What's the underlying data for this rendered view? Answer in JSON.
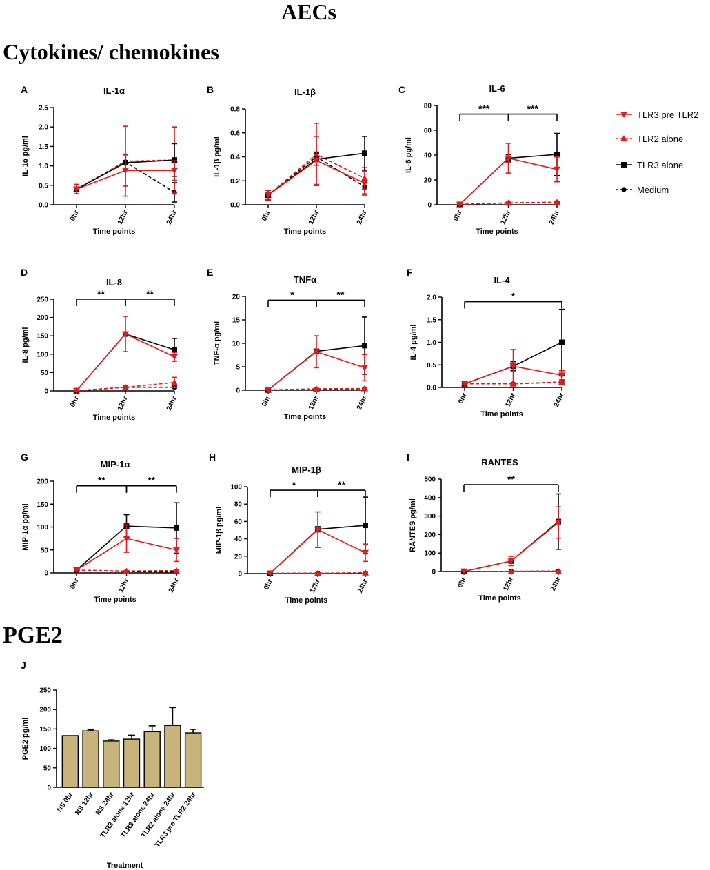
{
  "figure_title": "AECs",
  "section_cytokines": "Cytokines/ chemokines",
  "section_pge2": "PGE2",
  "legend": [
    {
      "key": "tlr3preTlr2",
      "label": "TLR3 pre TLR2",
      "color": "#e11c1c",
      "dash": false,
      "marker": "triangle-down"
    },
    {
      "key": "tlr2alone",
      "label": "TLR2 alone",
      "color": "#e11c1c",
      "dash": true,
      "marker": "triangle-up"
    },
    {
      "key": "tlr3alone",
      "label": "TLR3 alone",
      "color": "#000000",
      "dash": false,
      "marker": "square"
    },
    {
      "key": "medium",
      "label": "Medium",
      "color": "#000000",
      "dash": true,
      "marker": "circle"
    }
  ],
  "chart_data": [
    {
      "id": "A",
      "letter": "A",
      "type": "line",
      "title": "IL-1α",
      "ylabel": "IL-1α pg/ml",
      "xlabel": "Time points",
      "categories": [
        "0hr",
        "12hr",
        "24hr"
      ],
      "ylim": [
        0,
        2.5
      ],
      "yticks": [
        0.0,
        0.5,
        1.0,
        1.5,
        2.0,
        2.5
      ],
      "yticklabels": [
        "0.0",
        "0.5",
        "1.0",
        "1.5",
        "2.0",
        "2.5"
      ],
      "series": [
        {
          "name": "TLR3 pre TLR2",
          "values": [
            0.4,
            0.88,
            0.88
          ],
          "err": [
            0.12,
            0.4,
            0.25
          ]
        },
        {
          "name": "TLR2 alone",
          "values": [
            0.4,
            1.12,
            1.15
          ],
          "err": [
            0.12,
            0.9,
            0.85
          ]
        },
        {
          "name": "TLR3 alone",
          "values": [
            0.4,
            1.08,
            1.15
          ],
          "err": [
            0.12,
            0.2,
            0.42
          ]
        },
        {
          "name": "Medium",
          "values": [
            0.4,
            1.1,
            0.32
          ],
          "err": [
            0.12,
            0.2,
            0.25
          ]
        }
      ],
      "significance": []
    },
    {
      "id": "B",
      "letter": "B",
      "type": "line",
      "title": "IL-1β",
      "ylabel": "IL-1β pg/ml",
      "xlabel": "Time points",
      "categories": [
        "0hr",
        "12hr",
        "24hr"
      ],
      "ylim": [
        0,
        0.8
      ],
      "yticks": [
        0.0,
        0.2,
        0.4,
        0.6,
        0.8
      ],
      "yticklabels": [
        "0.0",
        "0.2",
        "0.4",
        "0.6",
        "0.8"
      ],
      "series": [
        {
          "name": "TLR3 pre TLR2",
          "values": [
            0.08,
            0.37,
            0.18
          ],
          "err": [
            0.04,
            0.2,
            0.1
          ]
        },
        {
          "name": "TLR2 alone",
          "values": [
            0.08,
            0.42,
            0.22
          ],
          "err": [
            0.04,
            0.26,
            0.09
          ]
        },
        {
          "name": "TLR3 alone",
          "values": [
            0.08,
            0.38,
            0.43
          ],
          "err": [
            0.04,
            0.05,
            0.14
          ]
        },
        {
          "name": "Medium",
          "values": [
            0.08,
            0.4,
            0.15
          ],
          "err": [
            0.04,
            0.04,
            0.06
          ]
        }
      ],
      "significance": []
    },
    {
      "id": "C",
      "letter": "C",
      "type": "line",
      "title": "IL-6",
      "ylabel": "IL-6 pg/ml",
      "xlabel": "Time points",
      "categories": [
        "0hr",
        "12hr",
        "24hr"
      ],
      "ylim": [
        0,
        80
      ],
      "yticks": [
        0,
        20,
        40,
        60,
        80
      ],
      "yticklabels": [
        "0",
        "20",
        "40",
        "60",
        "80"
      ],
      "series": [
        {
          "name": "TLR3 pre TLR2",
          "values": [
            0.3,
            37.5,
            28.5
          ],
          "err": [
            0.3,
            12,
            10
          ]
        },
        {
          "name": "TLR2 alone",
          "values": [
            0.3,
            1.5,
            2.0
          ],
          "err": [
            0.3,
            0.5,
            0.5
          ]
        },
        {
          "name": "TLR3 alone",
          "values": [
            0.3,
            37.5,
            40.5
          ],
          "err": [
            0.3,
            3,
            17
          ]
        },
        {
          "name": "Medium",
          "values": [
            0.3,
            1.5,
            2.0
          ],
          "err": [
            0.3,
            0.5,
            0.5
          ]
        }
      ],
      "significance": [
        {
          "from": 0,
          "to": 1,
          "label": "***",
          "y": 73
        },
        {
          "from": 1,
          "to": 2,
          "label": "***",
          "y": 73
        }
      ]
    },
    {
      "id": "D",
      "letter": "D",
      "type": "line",
      "title": "IL-8",
      "ylabel": "IL-8 pg/ml",
      "xlabel": "Time points",
      "categories": [
        "0hr",
        "12hr",
        "24hr"
      ],
      "ylim": [
        0,
        250
      ],
      "yticks": [
        0,
        50,
        100,
        150,
        200,
        250
      ],
      "yticklabels": [
        "0",
        "50",
        "100",
        "150",
        "200",
        "250"
      ],
      "series": [
        {
          "name": "TLR3 pre TLR2",
          "values": [
            0.5,
            155,
            93
          ],
          "err": [
            0.5,
            48,
            12
          ]
        },
        {
          "name": "TLR2 alone",
          "values": [
            0.5,
            10,
            23
          ],
          "err": [
            0.5,
            3,
            14
          ]
        },
        {
          "name": "TLR3 alone",
          "values": [
            0.5,
            155,
            112
          ],
          "err": [
            0.5,
            5,
            31
          ]
        },
        {
          "name": "Medium",
          "values": [
            0.5,
            10,
            10
          ],
          "err": [
            0.5,
            2,
            3
          ]
        }
      ],
      "significance": [
        {
          "from": 0,
          "to": 1,
          "label": "**",
          "y": 250
        },
        {
          "from": 1,
          "to": 2,
          "label": "**",
          "y": 250
        }
      ]
    },
    {
      "id": "E",
      "letter": "E",
      "type": "line",
      "title": "TNFα",
      "ylabel": "TNF-α pg/ml",
      "xlabel": "Time points",
      "categories": [
        "0hr",
        "12hr",
        "24hr"
      ],
      "ylim": [
        0,
        20
      ],
      "yticks": [
        0,
        5,
        10,
        15,
        20
      ],
      "yticklabels": [
        "0",
        "5",
        "10",
        "15",
        "20"
      ],
      "series": [
        {
          "name": "TLR3 pre TLR2",
          "values": [
            0.05,
            8.2,
            4.8
          ],
          "err": [
            0.05,
            3.4,
            2.8
          ]
        },
        {
          "name": "TLR2 alone",
          "values": [
            0.05,
            0.3,
            0.35
          ],
          "err": [
            0.05,
            0.1,
            0.1
          ]
        },
        {
          "name": "TLR3 alone",
          "values": [
            0.05,
            8.3,
            9.5
          ],
          "err": [
            0.05,
            0.3,
            6.1
          ]
        },
        {
          "name": "Medium",
          "values": [
            0.05,
            0.25,
            0.3
          ],
          "err": [
            0.05,
            0.1,
            0.1
          ]
        }
      ],
      "significance": [
        {
          "from": 0,
          "to": 1,
          "label": "*",
          "y": 19.2
        },
        {
          "from": 1,
          "to": 2,
          "label": "**",
          "y": 19.2
        }
      ]
    },
    {
      "id": "F",
      "letter": "F",
      "type": "line",
      "title": "IL-4",
      "ylabel": "IL-4 pg/ml",
      "xlabel": "Time points",
      "categories": [
        "0hr",
        "12hr",
        "24hr"
      ],
      "ylim": [
        0,
        2.0
      ],
      "yticks": [
        0.0,
        0.5,
        1.0,
        1.5,
        2.0
      ],
      "yticklabels": [
        "0.0",
        "0.5",
        "1.0",
        "1.5",
        "2.0"
      ],
      "series": [
        {
          "name": "TLR3 pre TLR2",
          "values": [
            0.08,
            0.47,
            0.27
          ],
          "err": [
            0.02,
            0.37,
            0.1
          ]
        },
        {
          "name": "TLR2 alone",
          "values": [
            0.08,
            0.08,
            0.12
          ],
          "err": [
            0.02,
            0.02,
            0.05
          ]
        },
        {
          "name": "TLR3 alone",
          "values": [
            0.08,
            0.47,
            1.0
          ],
          "err": [
            0.02,
            0.1,
            0.73
          ]
        },
        {
          "name": "Medium",
          "values": [
            0.08,
            0.08,
            0.12
          ],
          "err": [
            0.02,
            0.02,
            0.05
          ]
        }
      ],
      "significance": [
        {
          "from": 0,
          "to": 2,
          "label": "*",
          "y": 1.9
        }
      ]
    },
    {
      "id": "G",
      "letter": "G",
      "type": "line",
      "title": "MIP-1α",
      "ylabel": "MIP-1α pg/ml",
      "xlabel": "Time points",
      "categories": [
        "0hr",
        "12hr",
        "24hr"
      ],
      "ylim": [
        0,
        200
      ],
      "yticks": [
        0,
        50,
        100,
        150,
        200
      ],
      "yticklabels": [
        "0",
        "50",
        "100",
        "150",
        "200"
      ],
      "series": [
        {
          "name": "TLR3 pre TLR2",
          "values": [
            6,
            75,
            50
          ],
          "err": [
            1,
            30,
            25
          ]
        },
        {
          "name": "TLR2 alone",
          "values": [
            6,
            4,
            5
          ],
          "err": [
            1,
            1,
            2
          ]
        },
        {
          "name": "TLR3 alone",
          "values": [
            6,
            102,
            98
          ],
          "err": [
            1,
            25,
            55
          ]
        },
        {
          "name": "Medium",
          "values": [
            6,
            3,
            2
          ],
          "err": [
            1,
            1,
            1
          ]
        }
      ],
      "significance": [
        {
          "from": 0,
          "to": 1,
          "label": "**",
          "y": 190
        },
        {
          "from": 1,
          "to": 2,
          "label": "**",
          "y": 190
        }
      ]
    },
    {
      "id": "H",
      "letter": "H",
      "type": "line",
      "title": "MIP-1β",
      "ylabel": "MIP-1β pg/ml",
      "xlabel": "Time points",
      "categories": [
        "0hr",
        "12hr",
        "24hr"
      ],
      "ylim": [
        0,
        100
      ],
      "yticks": [
        0,
        20,
        40,
        60,
        80,
        100
      ],
      "yticklabels": [
        "0",
        "20",
        "40",
        "60",
        "80",
        "100"
      ],
      "series": [
        {
          "name": "TLR3 pre TLR2",
          "values": [
            0.3,
            50.5,
            24
          ],
          "err": [
            0.3,
            20.5,
            10
          ]
        },
        {
          "name": "TLR2 alone",
          "values": [
            0.3,
            0.5,
            1
          ],
          "err": [
            0.3,
            0.3,
            0.5
          ]
        },
        {
          "name": "TLR3 alone",
          "values": [
            0.3,
            51,
            55.5
          ],
          "err": [
            0.3,
            3,
            32.5
          ]
        },
        {
          "name": "Medium",
          "values": [
            0.3,
            0.5,
            0.5
          ],
          "err": [
            0.3,
            0.3,
            0.3
          ]
        }
      ],
      "significance": [
        {
          "from": 0,
          "to": 1,
          "label": "*",
          "y": 96
        },
        {
          "from": 1,
          "to": 2,
          "label": "**",
          "y": 96
        }
      ]
    },
    {
      "id": "I",
      "letter": "I",
      "type": "line",
      "title": "RANTES",
      "ylabel": "RANTES pg/ml",
      "xlabel": "Time points",
      "categories": [
        "0hr",
        "12hr",
        "24hr"
      ],
      "ylim": [
        0,
        500
      ],
      "yticks": [
        0,
        100,
        200,
        300,
        400,
        500
      ],
      "yticklabels": [
        "0",
        "100",
        "200",
        "300",
        "400",
        "500"
      ],
      "series": [
        {
          "name": "TLR3 pre TLR2",
          "values": [
            0.5,
            57,
            265
          ],
          "err": [
            0.5,
            25,
            85
          ]
        },
        {
          "name": "TLR2 alone",
          "values": [
            0.5,
            1,
            2
          ],
          "err": [
            0.5,
            0.5,
            1
          ]
        },
        {
          "name": "TLR3 alone",
          "values": [
            0.5,
            57,
            270
          ],
          "err": [
            0.5,
            10,
            150
          ]
        },
        {
          "name": "Medium",
          "values": [
            0.5,
            1,
            2
          ],
          "err": [
            0.5,
            0.5,
            1
          ]
        }
      ],
      "significance": [
        {
          "from": 0,
          "to": 2,
          "label": "**",
          "y": 470
        }
      ]
    },
    {
      "id": "J",
      "letter": "J",
      "type": "bar",
      "title": "",
      "ylabel": "PGE2 pg/ml",
      "xlabel": "Treatment",
      "categories": [
        "NS 0hr",
        "NS 12hr",
        "NS 24hr",
        "TLR3 alone 12hr",
        "TLR3 alone 24hr",
        "TLR2 alone 24hr",
        "TLR3 pre TLR2 24hr"
      ],
      "values": [
        133,
        145,
        119,
        124,
        143,
        159,
        140
      ],
      "err": [
        0,
        3,
        3,
        10,
        15,
        46,
        9
      ],
      "bar_color": "#c8b37a",
      "ylim": [
        0,
        250
      ],
      "yticks": [
        0,
        50,
        100,
        150,
        200,
        250
      ],
      "yticklabels": [
        "0",
        "50",
        "100",
        "150",
        "200",
        "250"
      ]
    }
  ]
}
